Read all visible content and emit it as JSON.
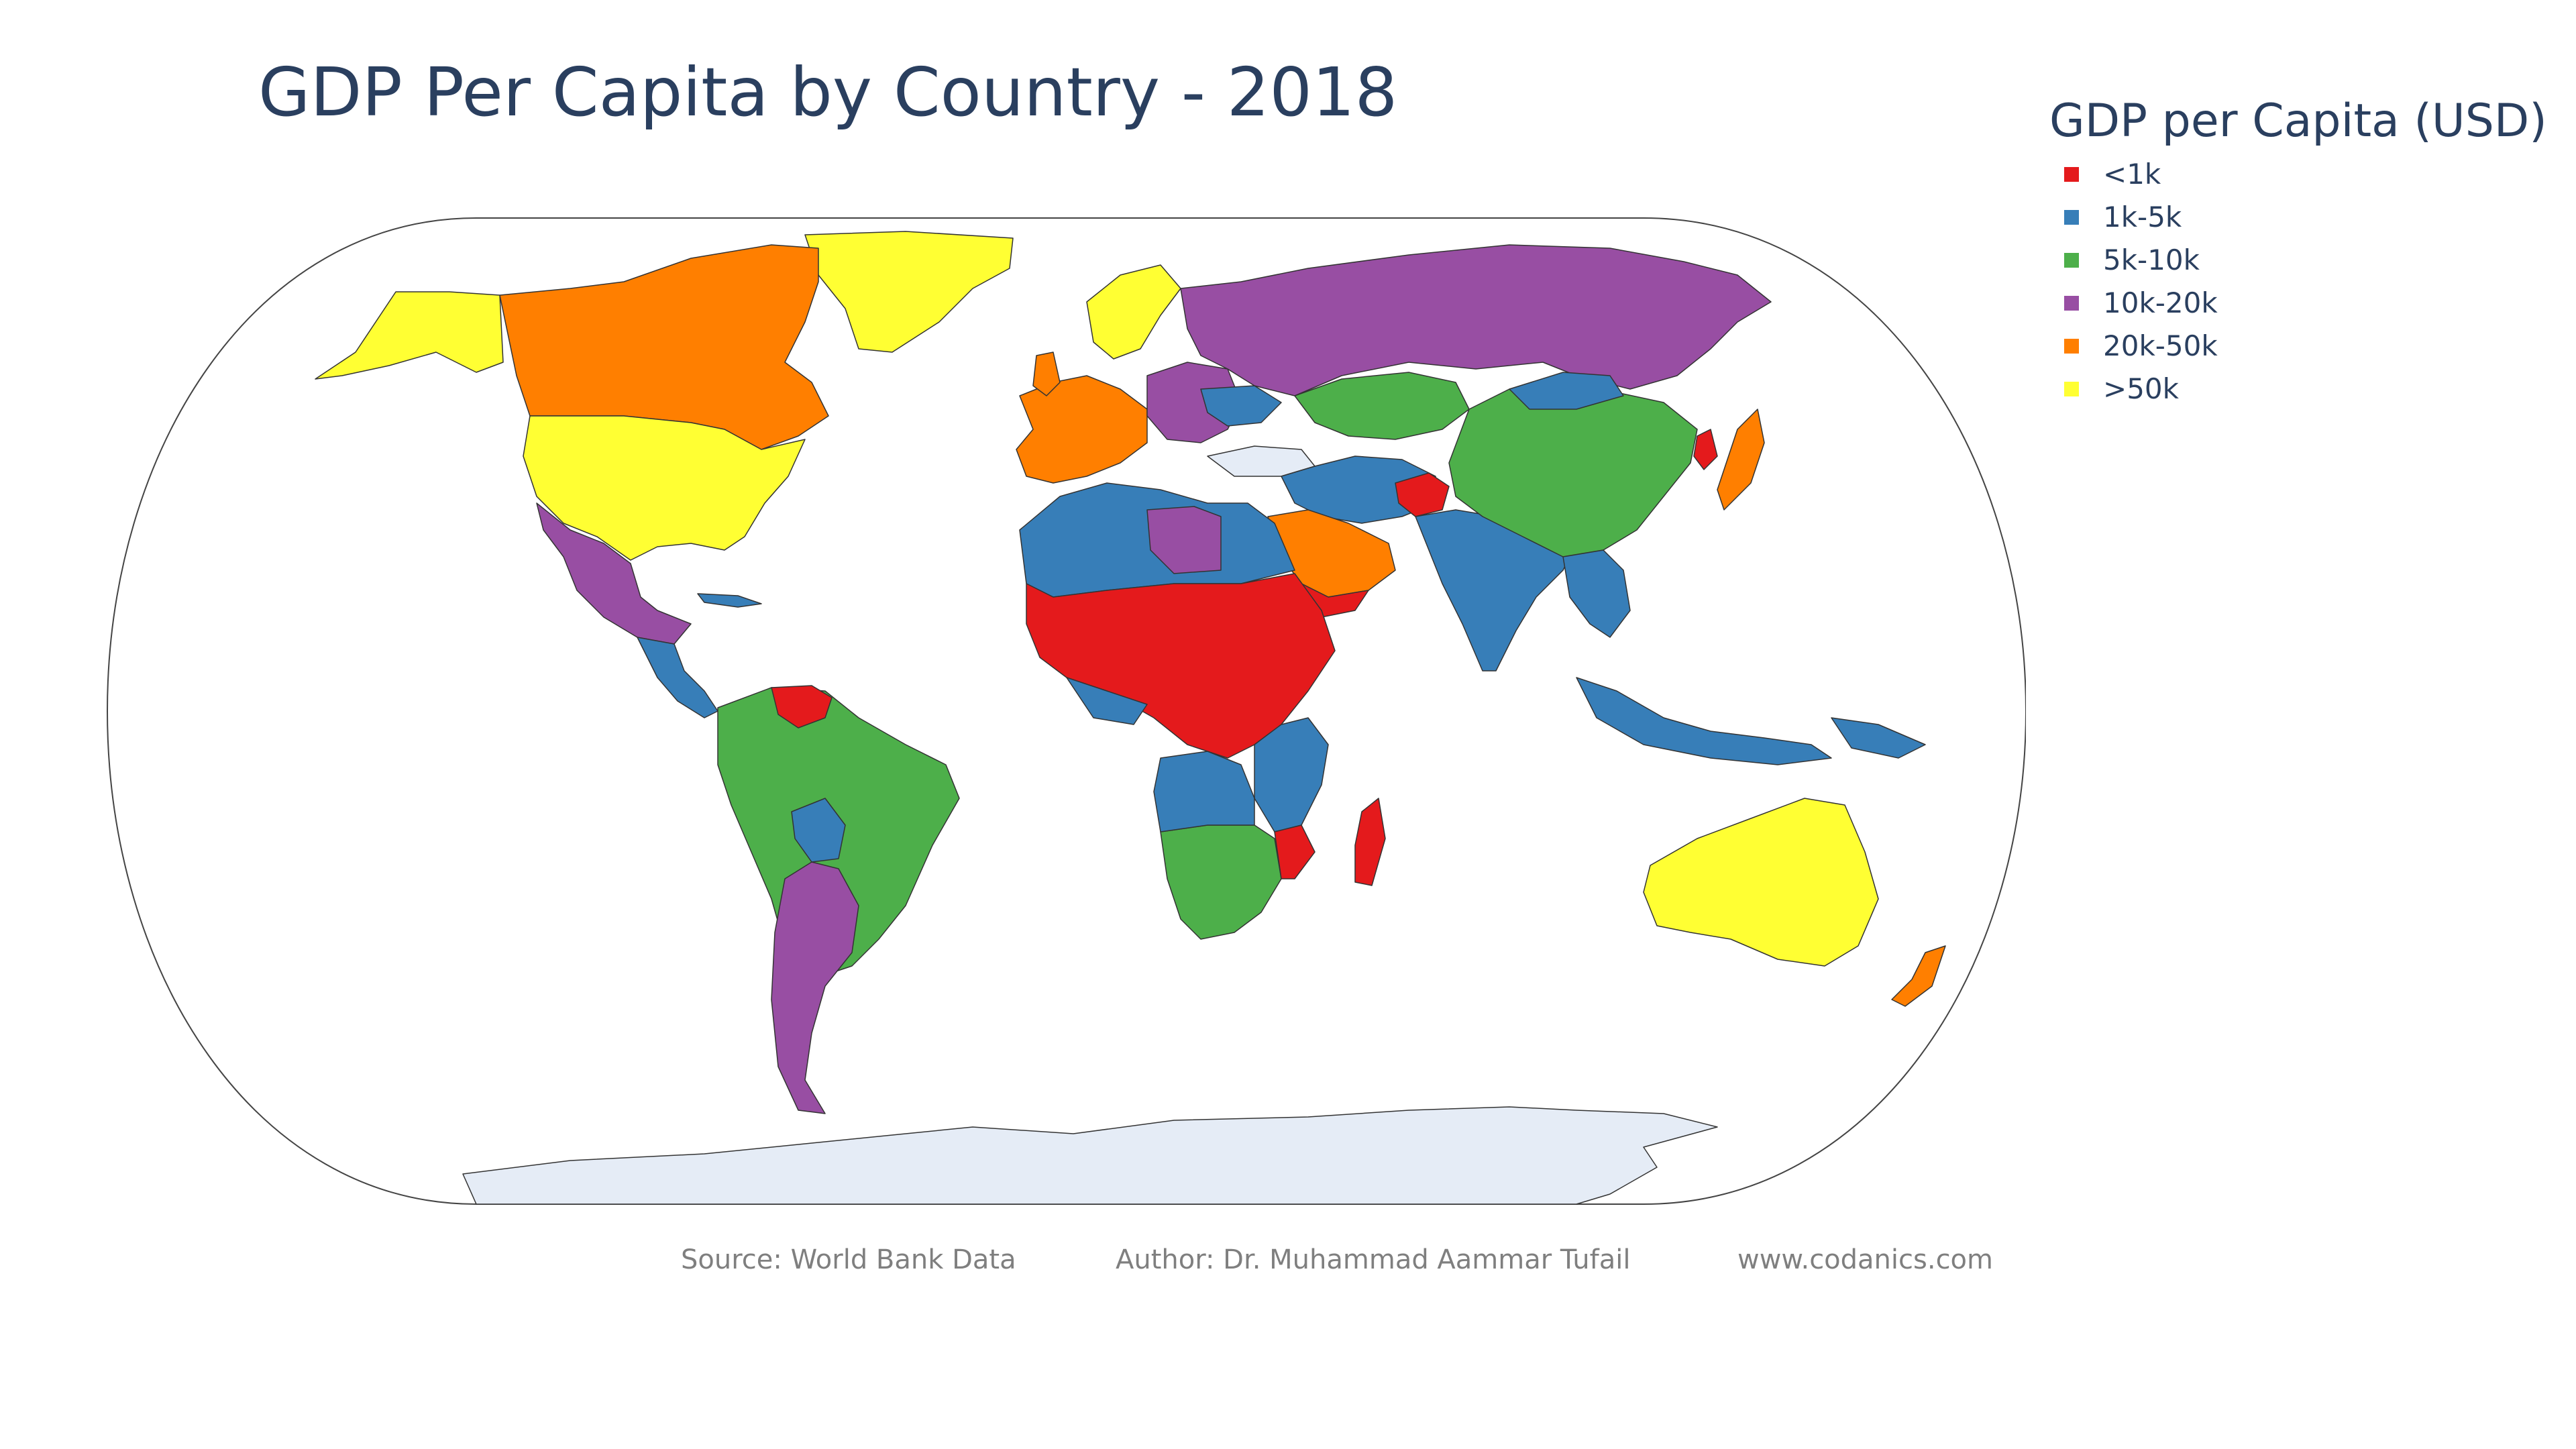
{
  "title": "GDP Per Capita by Country - 2018",
  "legend": {
    "title": "GDP per Capita (USD)",
    "items": [
      {
        "label": "<1k",
        "color": "#e41a1c"
      },
      {
        "label": "1k-5k",
        "color": "#377eb8"
      },
      {
        "label": "5k-10k",
        "color": "#4daf4a"
      },
      {
        "label": "10k-20k",
        "color": "#984ea3"
      },
      {
        "label": "20k-50k",
        "color": "#ff7f00"
      },
      {
        "label": ">50k",
        "color": "#ffff33"
      }
    ]
  },
  "map": {
    "projection": "natural earth",
    "ocean_color": "#ffffff",
    "no_data_color": "#e5ecf6",
    "border_color": "#444444"
  },
  "footer": {
    "source": "Source: World Bank Data",
    "author": "Author: Dr. Muhammad Aammar Tufail",
    "website": "www.codanics.com"
  }
}
